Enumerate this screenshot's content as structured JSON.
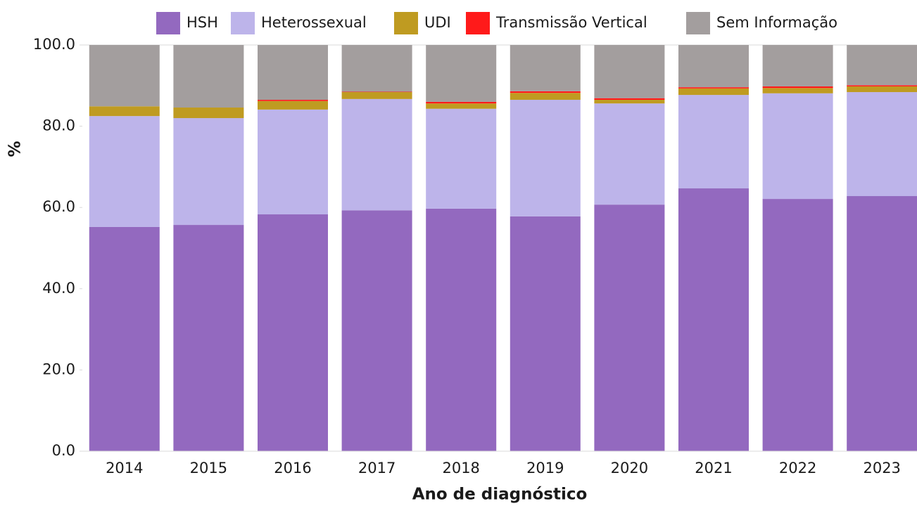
{
  "chart_data": {
    "type": "stacked_bar",
    "x_label": "Ano de diagnóstico",
    "y_label": "%",
    "categories": [
      "2014",
      "2015",
      "2016",
      "2017",
      "2018",
      "2019",
      "2020",
      "2021",
      "2022",
      "2023"
    ],
    "series": [
      {
        "name": "HSH",
        "color": "#9369bf",
        "values": [
          55.2,
          55.7,
          58.3,
          59.3,
          59.7,
          57.8,
          60.7,
          64.7,
          62.1,
          62.8
        ]
      },
      {
        "name": "Heterossexual",
        "color": "#bdb4ea",
        "values": [
          27.3,
          26.3,
          25.8,
          27.4,
          24.6,
          28.7,
          24.9,
          23.0,
          26.0,
          25.6
        ]
      },
      {
        "name": "UDI",
        "color": "#bf9b21",
        "values": [
          2.4,
          2.6,
          2.1,
          1.7,
          1.3,
          1.7,
          0.9,
          1.6,
          1.3,
          1.4
        ]
      },
      {
        "name": "Transmissão Vertical",
        "color": "#ff1a1a",
        "values": [
          0.0,
          0.0,
          0.3,
          0.1,
          0.4,
          0.4,
          0.4,
          0.3,
          0.4,
          0.3
        ]
      },
      {
        "name": "Sem Informação",
        "color": "#a39e9e",
        "values": [
          15.1,
          15.4,
          13.5,
          11.5,
          14.0,
          11.4,
          13.1,
          10.4,
          10.2,
          9.9
        ]
      }
    ],
    "ylim": [
      0,
      100
    ],
    "yticks": [
      {
        "value": 0,
        "label": "0.0"
      },
      {
        "value": 20,
        "label": "20.0"
      },
      {
        "value": 40,
        "label": "40.0"
      },
      {
        "value": 60,
        "label": "60.0"
      },
      {
        "value": 80,
        "label": "80.0"
      },
      {
        "value": 100,
        "label": "100.0"
      }
    ],
    "grid": false,
    "legend": "top"
  }
}
